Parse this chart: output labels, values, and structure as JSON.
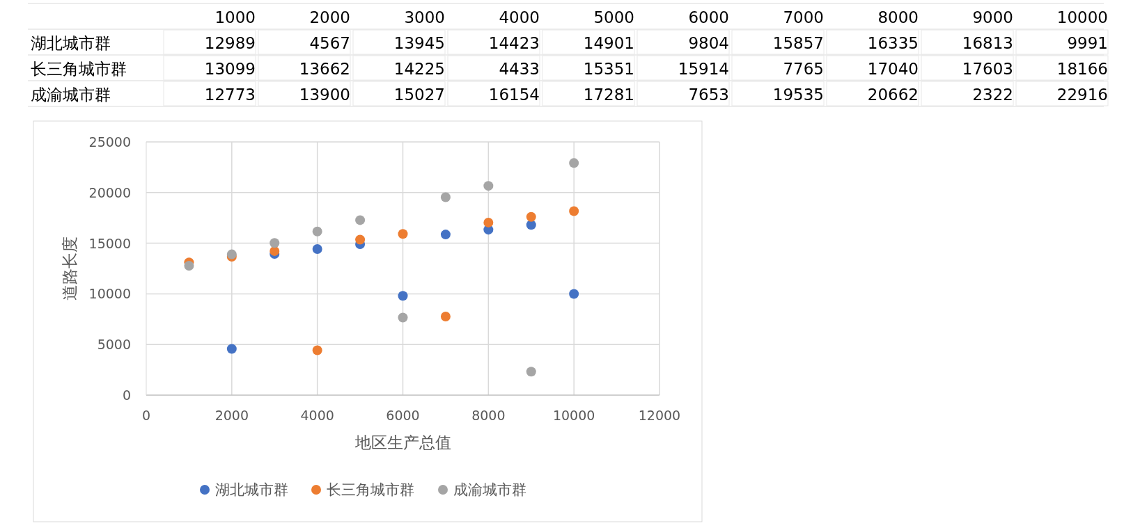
{
  "chart_data": [
    {
      "type": "heatmap",
      "categories": [
        "1000",
        "2000",
        "3000",
        "4000",
        "5000",
        "6000",
        "7000",
        "8000",
        "9000",
        "10000"
      ],
      "y_categories": [
        "湖北城市群",
        "长三角城市群",
        "成渝城市群"
      ],
      "cells": [
        [
          12989,
          4567,
          13945,
          14423,
          14901,
          9804,
          15857,
          16335,
          16813,
          9991
        ],
        [
          13099,
          13662,
          14225,
          4433,
          15351,
          15914,
          7765,
          17040,
          17603,
          18166
        ],
        [
          12773,
          13900,
          15027,
          16154,
          17281,
          7653,
          19535,
          20662,
          2322,
          22916
        ]
      ],
      "data_labels": true
    },
    {
      "type": "scatter",
      "x": [
        1000,
        2000,
        3000,
        4000,
        5000,
        6000,
        7000,
        8000,
        9000,
        10000
      ],
      "series": [
        {
          "name": "湖北城市群",
          "color": "#4472c4",
          "values": [
            null,
            4567,
            13945,
            14423,
            14901,
            9804,
            15857,
            16335,
            16813,
            9991
          ]
        },
        {
          "name": "长三角城市群",
          "color": "#ed7d31",
          "values": [
            13099,
            13662,
            14225,
            4433,
            15351,
            15914,
            7765,
            17040,
            17603,
            18166
          ]
        },
        {
          "name": "成渝城市群",
          "color": "#a5a5a5",
          "values": [
            12773,
            13900,
            15027,
            16154,
            17281,
            7653,
            19535,
            20662,
            2322,
            22916
          ]
        }
      ],
      "xlabel": "地区生产总值",
      "ylabel": "道路长度",
      "xlim": [
        0,
        12000
      ],
      "xticks": [
        0,
        2000,
        4000,
        6000,
        8000,
        10000,
        12000
      ],
      "ylim": [
        0,
        25000
      ],
      "yticks": [
        0,
        5000,
        10000,
        15000,
        20000,
        25000
      ],
      "grid": true,
      "legend": "bottom",
      "marker": "circle"
    }
  ]
}
